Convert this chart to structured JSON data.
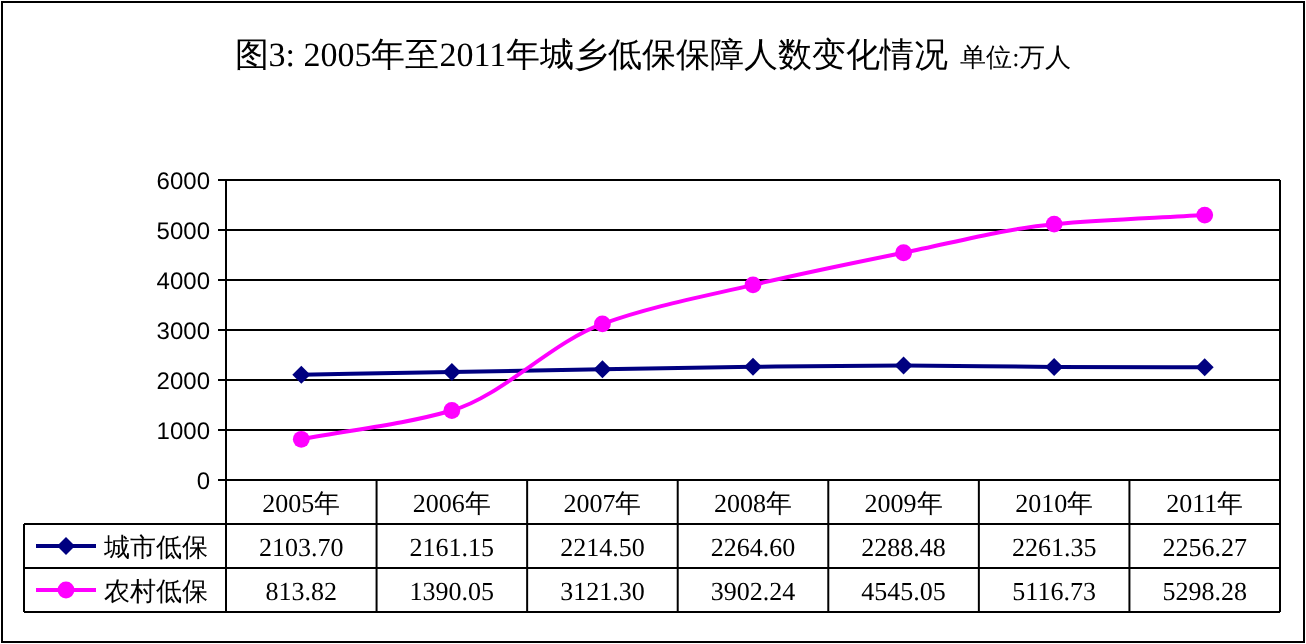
{
  "chart_data": {
    "type": "line",
    "title": "图3: 2005年至2011年城乡低保保障人数变化情况",
    "subtitle": "单位:万人",
    "categories": [
      "2005年",
      "2006年",
      "2007年",
      "2008年",
      "2009年",
      "2010年",
      "2011年"
    ],
    "series": [
      {
        "name": "城市低保",
        "color": "#000080",
        "marker": "diamond",
        "values": [
          2103.7,
          2161.15,
          2214.5,
          2264.6,
          2288.48,
          2261.35,
          2256.27
        ],
        "value_labels": [
          "2103.70",
          "2161.15",
          "2214.50",
          "2264.60",
          "2288.48",
          "2261.35",
          "2256.27"
        ]
      },
      {
        "name": "农村低保",
        "color": "#ff00ff",
        "marker": "circle",
        "values": [
          813.82,
          1390.05,
          3121.3,
          3902.24,
          4545.05,
          5116.73,
          5298.28
        ],
        "value_labels": [
          "813.82",
          "1390.05",
          "3121.30",
          "3902.24",
          "4545.05",
          "5116.73",
          "5298.28"
        ]
      }
    ],
    "ylim": [
      0,
      6000
    ],
    "yticks": [
      0,
      1000,
      2000,
      3000,
      4000,
      5000,
      6000
    ],
    "grid": "y",
    "legend": "bottom left"
  }
}
